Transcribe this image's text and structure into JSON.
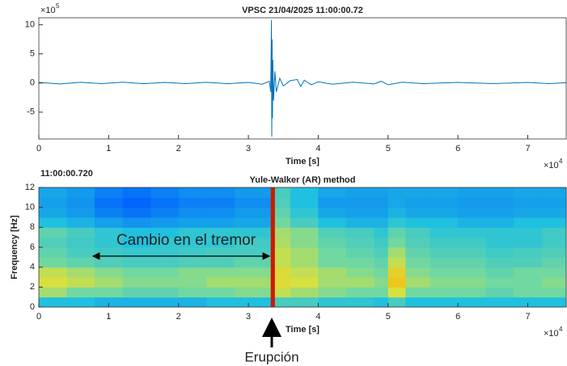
{
  "chart_data": [
    {
      "type": "line",
      "title": "VPSC 21/04/2025  11:00:00.72",
      "xlabel": "Time [s]",
      "x_multiplier": {
        "base": "×10",
        "exponent": 4
      },
      "y_multiplier": {
        "base": "×10",
        "exponent": 5
      },
      "xlim": [
        0,
        7.55
      ],
      "xticks": [
        0,
        1,
        2,
        3,
        4,
        5,
        6,
        7
      ],
      "ylim": [
        -9.6,
        11.2
      ],
      "yticks": [
        -5,
        0,
        5,
        10
      ],
      "series": [
        {
          "color": "#0072bd",
          "x": [
            0,
            0.3,
            0.6,
            0.9,
            1.2,
            1.5,
            1.8,
            2.1,
            2.4,
            2.7,
            3.0,
            3.2,
            3.3,
            3.32,
            3.33,
            3.335,
            3.34,
            3.345,
            3.35,
            3.36,
            3.38,
            3.4,
            3.45,
            3.5,
            3.6,
            3.7,
            3.75,
            3.8,
            3.9,
            4.0,
            4.2,
            4.5,
            4.8,
            4.9,
            5.0,
            5.2,
            5.5,
            6.0,
            6.5,
            7.0,
            7.3,
            7.55
          ],
          "values": [
            0.1,
            -0.15,
            0.12,
            -0.1,
            0.15,
            -0.12,
            0.1,
            -0.1,
            0.12,
            -0.12,
            0.1,
            -0.2,
            0.3,
            -1.5,
            10.8,
            -9.2,
            7.5,
            -6,
            4,
            -3,
            2,
            -1.5,
            0.8,
            -0.5,
            0.4,
            0.6,
            -0.6,
            0.5,
            -0.3,
            0.2,
            -0.2,
            0.15,
            -0.15,
            0.3,
            -0.3,
            0.15,
            -0.1,
            0.1,
            -0.1,
            0.1,
            -0.1,
            0.05
          ]
        }
      ]
    },
    {
      "type": "heatmap",
      "title": "Yule-Walker (AR) method",
      "time_label": "11:00:00.720",
      "xlabel": "Time [s]",
      "ylabel": "Frequency [Hz]",
      "x_multiplier": {
        "base": "×10",
        "exponent": 4
      },
      "xlim": [
        0,
        7.55
      ],
      "xticks": [
        0,
        1,
        2,
        3,
        4,
        5,
        6,
        7
      ],
      "ylim": [
        0,
        12
      ],
      "yticks": [
        0,
        2,
        4,
        6,
        8,
        10,
        12
      ],
      "x_edges": [
        0,
        0.4,
        0.8,
        1.2,
        1.6,
        2.0,
        2.4,
        2.8,
        3.32,
        3.38,
        3.6,
        4.0,
        4.4,
        4.8,
        5.0,
        5.25,
        5.6,
        6.0,
        6.4,
        6.8,
        7.2,
        7.55
      ],
      "y_edges": [
        0,
        1,
        2,
        3,
        4,
        5,
        6,
        7,
        8,
        9,
        10,
        11,
        12
      ],
      "colormap": [
        [
          0,
          "#00008f"
        ],
        [
          0.25,
          "#0060ff"
        ],
        [
          0.4,
          "#20c0e0"
        ],
        [
          0.5,
          "#70d8a0"
        ],
        [
          0.6,
          "#d8e040"
        ],
        [
          0.75,
          "#ffb000"
        ],
        [
          0.9,
          "#ff3000"
        ],
        [
          1,
          "#a00000"
        ]
      ],
      "z": [
        [
          0.4,
          0.4,
          0.38,
          0.38,
          0.38,
          0.38,
          0.4,
          0.4,
          0.95,
          0.45,
          0.45,
          0.42,
          0.42,
          0.4,
          0.45,
          0.4,
          0.4,
          0.4,
          0.4,
          0.4,
          0.4
        ],
        [
          0.55,
          0.5,
          0.5,
          0.48,
          0.48,
          0.5,
          0.5,
          0.52,
          0.95,
          0.58,
          0.55,
          0.52,
          0.5,
          0.5,
          0.6,
          0.5,
          0.5,
          0.5,
          0.48,
          0.5,
          0.5
        ],
        [
          0.6,
          0.58,
          0.55,
          0.52,
          0.52,
          0.52,
          0.55,
          0.55,
          0.95,
          0.62,
          0.6,
          0.55,
          0.55,
          0.52,
          0.68,
          0.55,
          0.52,
          0.52,
          0.5,
          0.5,
          0.52
        ],
        [
          0.58,
          0.55,
          0.52,
          0.5,
          0.5,
          0.52,
          0.52,
          0.52,
          0.95,
          0.62,
          0.58,
          0.55,
          0.52,
          0.5,
          0.65,
          0.52,
          0.5,
          0.5,
          0.48,
          0.5,
          0.5
        ],
        [
          0.5,
          0.48,
          0.46,
          0.45,
          0.45,
          0.46,
          0.46,
          0.48,
          0.95,
          0.58,
          0.55,
          0.5,
          0.5,
          0.48,
          0.58,
          0.5,
          0.48,
          0.48,
          0.46,
          0.46,
          0.48
        ],
        [
          0.48,
          0.45,
          0.44,
          0.43,
          0.43,
          0.44,
          0.45,
          0.45,
          0.95,
          0.58,
          0.55,
          0.5,
          0.48,
          0.46,
          0.55,
          0.48,
          0.46,
          0.46,
          0.44,
          0.45,
          0.46
        ],
        [
          0.46,
          0.44,
          0.42,
          0.4,
          0.42,
          0.42,
          0.42,
          0.44,
          0.95,
          0.56,
          0.52,
          0.48,
          0.46,
          0.44,
          0.5,
          0.46,
          0.44,
          0.44,
          0.42,
          0.42,
          0.44
        ],
        [
          0.48,
          0.45,
          0.42,
          0.4,
          0.4,
          0.42,
          0.42,
          0.42,
          0.95,
          0.55,
          0.52,
          0.46,
          0.45,
          0.42,
          0.48,
          0.45,
          0.42,
          0.42,
          0.42,
          0.42,
          0.44
        ],
        [
          0.4,
          0.38,
          0.35,
          0.33,
          0.34,
          0.35,
          0.35,
          0.36,
          0.95,
          0.5,
          0.45,
          0.4,
          0.38,
          0.38,
          0.42,
          0.4,
          0.4,
          0.38,
          0.38,
          0.4,
          0.4
        ],
        [
          0.36,
          0.34,
          0.3,
          0.28,
          0.3,
          0.32,
          0.32,
          0.34,
          0.95,
          0.48,
          0.42,
          0.36,
          0.35,
          0.35,
          0.38,
          0.36,
          0.36,
          0.35,
          0.35,
          0.36,
          0.36
        ],
        [
          0.35,
          0.33,
          0.28,
          0.26,
          0.28,
          0.3,
          0.3,
          0.32,
          0.95,
          0.46,
          0.4,
          0.34,
          0.34,
          0.34,
          0.36,
          0.35,
          0.35,
          0.34,
          0.34,
          0.35,
          0.35
        ],
        [
          0.36,
          0.34,
          0.3,
          0.28,
          0.3,
          0.32,
          0.32,
          0.34,
          0.95,
          0.45,
          0.4,
          0.36,
          0.35,
          0.35,
          0.36,
          0.36,
          0.36,
          0.35,
          0.35,
          0.36,
          0.36
        ]
      ],
      "annotations": [
        "Cambio en el tremor",
        "Erupción"
      ]
    }
  ]
}
